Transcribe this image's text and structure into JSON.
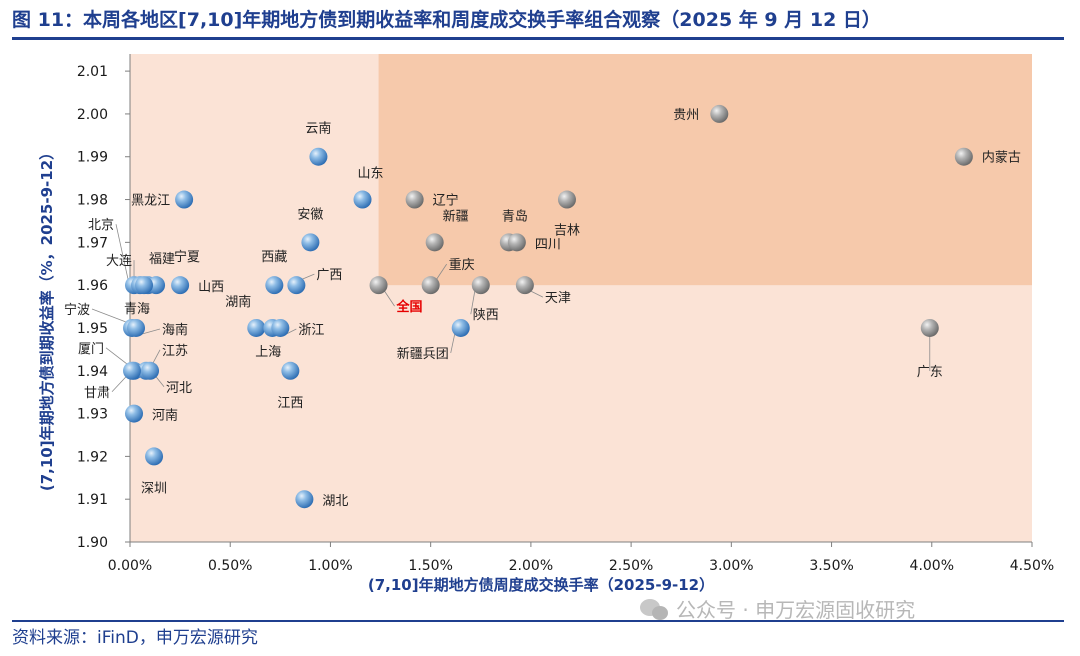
{
  "page": {
    "title": "图 11：本周各地区[7,10]年期地方债到期收益率和周度成交换手率组合观察（2025 年 9 月 12 日）",
    "source": "资料来源：iFinD，申万宏源研究",
    "watermark": "公众号 · 申万宏源固收研究"
  },
  "colors": {
    "title": "#1f3f8f",
    "quadrant_light": "#fbe3d6",
    "quadrant_dark": "#f6c9ab",
    "highlight_label": "#e60000"
  },
  "chart_data": {
    "type": "scatter",
    "xlabel": "(7,10]年期地方债周度成交换手率（2025-9-12）",
    "ylabel": "(7,10]年期地方债到期收益率（%，2025-9-12）",
    "xlim": [
      0,
      4.5
    ],
    "ylim": [
      1.9,
      2.01
    ],
    "x_ticks": [
      0,
      0.5,
      1.0,
      1.5,
      2.0,
      2.5,
      3.0,
      3.5,
      4.0,
      4.5
    ],
    "x_tick_labels": [
      "0.00%",
      "0.50%",
      "1.00%",
      "1.50%",
      "2.00%",
      "2.50%",
      "3.00%",
      "3.50%",
      "4.00%",
      "4.50%"
    ],
    "y_ticks": [
      1.9,
      1.91,
      1.92,
      1.93,
      1.94,
      1.95,
      1.96,
      1.97,
      1.98,
      1.99,
      2.0,
      2.01
    ],
    "y_tick_labels": [
      "1.90",
      "1.91",
      "1.92",
      "1.93",
      "1.94",
      "1.95",
      "1.96",
      "1.97",
      "1.98",
      "1.99",
      "2.00",
      "2.01"
    ],
    "reference": {
      "name": "全国",
      "x": 1.24,
      "y": 1.96
    },
    "points": [
      {
        "name": "贵州",
        "x": 2.94,
        "y": 2.0
      },
      {
        "name": "内蒙古",
        "x": 4.16,
        "y": 1.99
      },
      {
        "name": "云南",
        "x": 0.94,
        "y": 1.99
      },
      {
        "name": "山东",
        "x": 1.16,
        "y": 1.98
      },
      {
        "name": "辽宁",
        "x": 1.42,
        "y": 1.98
      },
      {
        "name": "吉林",
        "x": 2.18,
        "y": 1.98
      },
      {
        "name": "黑龙江",
        "x": 0.27,
        "y": 1.98
      },
      {
        "name": "安徽",
        "x": 0.9,
        "y": 1.97
      },
      {
        "name": "新疆",
        "x": 1.52,
        "y": 1.97
      },
      {
        "name": "青岛",
        "x": 1.89,
        "y": 1.97
      },
      {
        "name": "四川",
        "x": 1.93,
        "y": 1.97
      },
      {
        "name": "北京",
        "x": 0.02,
        "y": 1.96
      },
      {
        "name": "大连",
        "x": 0.05,
        "y": 1.96
      },
      {
        "name": "福建",
        "x": 0.09,
        "y": 1.96
      },
      {
        "name": "宁夏",
        "x": 0.13,
        "y": 1.96
      },
      {
        "name": "山西",
        "x": 0.25,
        "y": 1.96
      },
      {
        "name": "西藏",
        "x": 0.72,
        "y": 1.96
      },
      {
        "name": "广西",
        "x": 0.83,
        "y": 1.96
      },
      {
        "name": "全国",
        "x": 1.24,
        "y": 1.96
      },
      {
        "name": "重庆",
        "x": 1.5,
        "y": 1.96
      },
      {
        "name": "陕西",
        "x": 1.75,
        "y": 1.96
      },
      {
        "name": "天津",
        "x": 1.97,
        "y": 1.96
      },
      {
        "name": "青海",
        "x": 0.07,
        "y": 1.96
      },
      {
        "name": "宁波",
        "x": 0.01,
        "y": 1.95
      },
      {
        "name": "海南",
        "x": 0.03,
        "y": 1.95
      },
      {
        "name": "湖南",
        "x": 0.63,
        "y": 1.95
      },
      {
        "name": "上海",
        "x": 0.71,
        "y": 1.95
      },
      {
        "name": "浙江",
        "x": 0.75,
        "y": 1.95
      },
      {
        "name": "新疆兵团",
        "x": 1.65,
        "y": 1.95
      },
      {
        "name": "广东",
        "x": 3.99,
        "y": 1.95
      },
      {
        "name": "厦门",
        "x": 0.02,
        "y": 1.94
      },
      {
        "name": "江苏",
        "x": 0.08,
        "y": 1.94
      },
      {
        "name": "河北",
        "x": 0.1,
        "y": 1.94
      },
      {
        "name": "甘肃",
        "x": 0.01,
        "y": 1.94
      },
      {
        "name": "江西",
        "x": 0.8,
        "y": 1.94
      },
      {
        "name": "河南",
        "x": 0.02,
        "y": 1.93
      },
      {
        "name": "深圳",
        "x": 0.12,
        "y": 1.92
      },
      {
        "name": "湖北",
        "x": 0.87,
        "y": 1.91
      }
    ]
  }
}
